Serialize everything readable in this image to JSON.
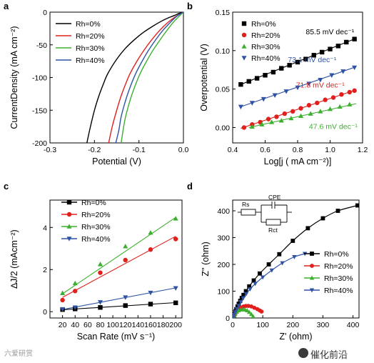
{
  "watermark": {
    "left_text": "六爱研赏",
    "right_text": "催化前沿"
  },
  "chart_data": [
    {
      "panel": "a",
      "type": "line",
      "xlabel": "Potential (V)",
      "ylabel": "CurrentDensity (mA cm⁻²)",
      "xlim": [
        -0.3,
        0.0
      ],
      "ylim": [
        -200,
        0
      ],
      "xticks": [
        -0.3,
        -0.2,
        -0.1,
        0.0
      ],
      "xtick_labels": [
        "-0.3",
        "-0.2",
        "-0.1",
        "0.0"
      ],
      "yticks": [
        0,
        -50,
        -100,
        -150,
        -200
      ],
      "ytick_labels": [
        "0",
        "-50",
        "-100",
        "-150",
        "-200"
      ],
      "legend": "top-left",
      "series": [
        {
          "name": "Rh=0%",
          "color": "#000000",
          "x": [
            -0.217,
            -0.21,
            -0.2,
            -0.19,
            -0.18,
            -0.17,
            -0.15,
            -0.13,
            -0.11,
            -0.09,
            -0.07,
            -0.05,
            -0.035,
            -0.02,
            -0.01,
            0.0
          ],
          "y": [
            -200,
            -178,
            -150,
            -128,
            -110,
            -94,
            -72,
            -55,
            -42,
            -31,
            -22,
            -14,
            -9,
            -5,
            -2,
            0
          ]
        },
        {
          "name": "Rh=20%",
          "color": "#e0201c",
          "x": [
            -0.168,
            -0.16,
            -0.15,
            -0.14,
            -0.13,
            -0.12,
            -0.1,
            -0.08,
            -0.06,
            -0.045,
            -0.03,
            -0.018,
            -0.008,
            0.0
          ],
          "y": [
            -200,
            -175,
            -150,
            -128,
            -110,
            -94,
            -70,
            -50,
            -33,
            -22,
            -13,
            -7,
            -3,
            0
          ]
        },
        {
          "name": "Rh=30%",
          "color": "#3cb02e",
          "x": [
            -0.14,
            -0.135,
            -0.13,
            -0.12,
            -0.11,
            -0.1,
            -0.09,
            -0.07,
            -0.05,
            -0.035,
            -0.022,
            -0.012,
            -0.005,
            0.0
          ],
          "y": [
            -200,
            -178,
            -160,
            -135,
            -115,
            -98,
            -84,
            -60,
            -40,
            -26,
            -15,
            -8,
            -3,
            0
          ]
        },
        {
          "name": "Rh=40%",
          "color": "#2e52a4",
          "x": [
            -0.152,
            -0.145,
            -0.14,
            -0.13,
            -0.12,
            -0.11,
            -0.1,
            -0.08,
            -0.06,
            -0.045,
            -0.03,
            -0.018,
            -0.008,
            0.0
          ],
          "y": [
            -200,
            -180,
            -160,
            -135,
            -115,
            -98,
            -84,
            -60,
            -40,
            -27,
            -16,
            -8,
            -3,
            0
          ]
        }
      ]
    },
    {
      "panel": "b",
      "type": "scatter",
      "xlabel": "Log[j ( mA cm⁻²)]",
      "ylabel": "Overpotential (V)",
      "xlim": [
        0.4,
        1.2
      ],
      "ylim": [
        -0.02,
        0.15
      ],
      "xticks": [
        0.4,
        0.6,
        0.8,
        1.0,
        1.2
      ],
      "xtick_labels": [
        "0.4",
        "0.6",
        "0.8",
        "1.0",
        "1.2"
      ],
      "yticks": [
        0.0,
        0.05,
        0.1,
        0.15
      ],
      "ytick_labels": [
        "0.00",
        "0.05",
        "0.10",
        "0.15"
      ],
      "legend": "top-left",
      "series": [
        {
          "name": "Rh=0%",
          "color": "#000000",
          "marker": "square",
          "x": [
            0.45,
            0.5,
            0.55,
            0.6,
            0.65,
            0.7,
            0.75,
            0.8,
            0.85,
            0.9,
            0.95,
            1.0,
            1.05,
            1.1,
            1.15
          ],
          "y": [
            0.056,
            0.06,
            0.064,
            0.068,
            0.072,
            0.077,
            0.081,
            0.085,
            0.089,
            0.094,
            0.098,
            0.102,
            0.106,
            0.111,
            0.115
          ]
        },
        {
          "name": "Rh=20%",
          "color": "#e0201c",
          "marker": "circle",
          "x": [
            0.47,
            0.52,
            0.57,
            0.62,
            0.67,
            0.72,
            0.77,
            0.82,
            0.87,
            0.92,
            0.97,
            1.02,
            1.07,
            1.12,
            1.15
          ],
          "y": [
            0.0,
            0.004,
            0.007,
            0.011,
            0.014,
            0.018,
            0.021,
            0.025,
            0.029,
            0.032,
            0.036,
            0.039,
            0.043,
            0.046,
            0.048
          ]
        },
        {
          "name": "Rh=30%",
          "color": "#3cb02e",
          "marker": "triangle-up",
          "x": [
            0.52,
            0.58,
            0.64,
            0.7,
            0.76,
            0.82,
            0.88,
            0.94,
            1.0,
            1.06,
            1.12
          ],
          "y": [
            0.001,
            0.004,
            0.007,
            0.009,
            0.012,
            0.015,
            0.018,
            0.021,
            0.024,
            0.027,
            0.03
          ]
        },
        {
          "name": "Rh=40%",
          "color": "#2e52a4",
          "marker": "triangle-down",
          "x": [
            0.45,
            0.52,
            0.59,
            0.66,
            0.73,
            0.8,
            0.87,
            0.94,
            1.01,
            1.08,
            1.15
          ],
          "y": [
            0.027,
            0.032,
            0.037,
            0.042,
            0.047,
            0.052,
            0.057,
            0.062,
            0.068,
            0.073,
            0.078
          ]
        }
      ],
      "fit_lines": [
        {
          "color": "#000000",
          "x": [
            0.45,
            1.16
          ],
          "y": [
            0.056,
            0.116
          ]
        },
        {
          "color": "#e0201c",
          "x": [
            0.45,
            1.16
          ],
          "y": [
            -0.001,
            0.049
          ]
        },
        {
          "color": "#3cb02e",
          "x": [
            0.5,
            1.16
          ],
          "y": [
            0.0,
            0.031
          ]
        },
        {
          "color": "#2e52a4",
          "x": [
            0.45,
            1.16
          ],
          "y": [
            0.027,
            0.079
          ]
        }
      ],
      "annotations": [
        {
          "text": "85.5 mV dec⁻¹",
          "color": "#000000",
          "x": 0.85,
          "y": 0.121
        },
        {
          "text": "73.1 mV dec⁻¹",
          "color": "#2e52a4",
          "x": 0.74,
          "y": 0.085
        },
        {
          "text": "71.8 mV dec⁻¹",
          "color": "#e0201c",
          "x": 0.79,
          "y": 0.052
        },
        {
          "text": "47.6 mV dec⁻¹",
          "color": "#3cb02e",
          "x": 0.87,
          "y": -0.002
        }
      ]
    },
    {
      "panel": "c",
      "type": "scatter",
      "xlabel": "Scan Rate (mV s⁻¹)",
      "ylabel": "∆J/2 (mAcm⁻²)",
      "xlim": [
        0,
        210
      ],
      "ylim": [
        -0.3,
        5.3
      ],
      "xticks": [
        20,
        40,
        60,
        80,
        100,
        120,
        140,
        160,
        180,
        200
      ],
      "xtick_labels": [
        "20",
        "40",
        "60",
        "80",
        "100",
        "120",
        "140",
        "160",
        "180",
        "200"
      ],
      "yticks": [
        0,
        2,
        4
      ],
      "ytick_labels": [
        "0",
        "2",
        "4"
      ],
      "legend": "top-left",
      "series": [
        {
          "name": "Rh=0%",
          "color": "#000000",
          "marker": "square",
          "x": [
            20,
            40,
            80,
            120,
            160,
            200
          ],
          "y": [
            0.1,
            0.13,
            0.2,
            0.29,
            0.36,
            0.42
          ]
        },
        {
          "name": "Rh=20%",
          "color": "#e0201c",
          "marker": "circle",
          "x": [
            20,
            40,
            80,
            120,
            160,
            200
          ],
          "y": [
            0.55,
            0.98,
            1.85,
            2.45,
            2.95,
            3.45
          ]
        },
        {
          "name": "Rh=30%",
          "color": "#3cb02e",
          "marker": "triangle-up",
          "x": [
            20,
            40,
            80,
            120,
            160,
            200
          ],
          "y": [
            0.88,
            1.35,
            2.25,
            3.1,
            3.75,
            4.42
          ]
        },
        {
          "name": "Rh=40%",
          "color": "#2e52a4",
          "marker": "triangle-down",
          "x": [
            20,
            40,
            80,
            120,
            160,
            200
          ],
          "y": [
            0.12,
            0.2,
            0.45,
            0.68,
            0.9,
            1.12
          ]
        }
      ],
      "fit_lines": [
        {
          "color": "#000000",
          "x": [
            20,
            200
          ],
          "y": [
            0.09,
            0.43
          ]
        },
        {
          "color": "#e0201c",
          "x": [
            20,
            200
          ],
          "y": [
            0.68,
            3.58
          ]
        },
        {
          "color": "#3cb02e",
          "x": [
            20,
            200
          ],
          "y": [
            0.85,
            4.48
          ]
        },
        {
          "color": "#2e52a4",
          "x": [
            20,
            200
          ],
          "y": [
            0.1,
            1.13
          ]
        }
      ]
    },
    {
      "panel": "d",
      "type": "line",
      "xlabel": "Z' (ohm)",
      "ylabel": "Z'' (ohm)",
      "xlim": [
        0,
        420
      ],
      "ylim": [
        0,
        440
      ],
      "xticks": [
        0,
        100,
        200,
        300,
        400
      ],
      "xtick_labels": [
        "0",
        "100",
        "200",
        "300",
        "400"
      ],
      "yticks": [
        0,
        100,
        200,
        300,
        400
      ],
      "ytick_labels": [
        "0",
        "100",
        "200",
        "300",
        "400"
      ],
      "legend": "right",
      "circuit": {
        "rs": "Rs",
        "cpe": "CPE",
        "rct": "Rct"
      },
      "series": [
        {
          "name": "Rh=0%",
          "color": "#000000",
          "marker": "square",
          "x": [
            2,
            4,
            6,
            9,
            12,
            16,
            20,
            25,
            30,
            36,
            44,
            55,
            70,
            90,
            120,
            155,
            200,
            250,
            300,
            350,
            415
          ],
          "y": [
            2,
            8,
            15,
            24,
            33,
            43,
            53,
            64,
            75,
            86,
            100,
            118,
            140,
            166,
            200,
            238,
            288,
            335,
            372,
            400,
            420
          ]
        },
        {
          "name": "Rh=20%",
          "color": "#e0201c",
          "marker": "circle",
          "x": [
            2,
            5,
            9,
            14,
            20,
            28,
            36,
            44,
            52,
            62,
            72,
            82,
            90,
            96
          ],
          "y": [
            3,
            10,
            18,
            26,
            33,
            39,
            43,
            45,
            45,
            43,
            38,
            33,
            28,
            24
          ]
        },
        {
          "name": "Rh=30%",
          "color": "#3cb02e",
          "marker": "triangle-up",
          "x": [
            2,
            5,
            9,
            14,
            20,
            27,
            34,
            41,
            48,
            55,
            62,
            68
          ],
          "y": [
            3,
            10,
            17,
            23,
            28,
            31,
            32,
            31,
            28,
            22,
            14,
            6
          ]
        },
        {
          "name": "Rh=40%",
          "color": "#2e52a4",
          "marker": "triangle-down",
          "x": [
            2,
            5,
            9,
            14,
            20,
            27,
            35,
            45,
            58,
            75,
            100,
            130,
            165,
            205,
            240
          ],
          "y": [
            3,
            12,
            22,
            34,
            46,
            60,
            74,
            90,
            108,
            128,
            152,
            178,
            205,
            228,
            240
          ]
        }
      ]
    }
  ]
}
